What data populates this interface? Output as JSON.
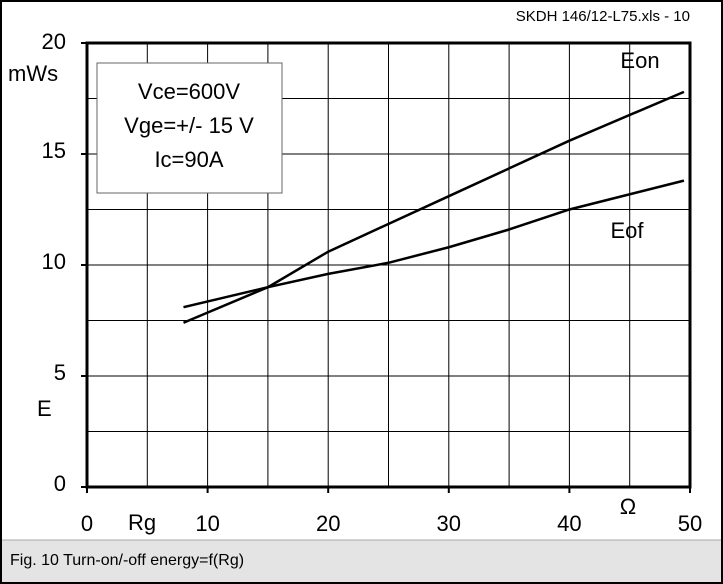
{
  "chart_data": {
    "type": "line",
    "file_label": "SKDH 146/12-L75.xls - 10",
    "caption": "Fig. 10 Turn-on/-off energy=f(Rg)",
    "y_unit": "mWs",
    "y_label": "E",
    "x_label": "Rg",
    "x_unit": "Ω",
    "conditions": [
      "Vce=600V",
      "Vge=+/- 15 V",
      "Ic=90A"
    ],
    "xlim": [
      0,
      50
    ],
    "ylim": [
      0,
      20
    ],
    "xticks": [
      0,
      10,
      20,
      30,
      40,
      50
    ],
    "yticks": [
      0,
      5,
      10,
      15,
      20
    ],
    "xgrid": [
      0,
      5,
      10,
      15,
      20,
      25,
      30,
      35,
      40,
      45,
      50
    ],
    "ygrid": [
      0,
      2.5,
      5,
      7.5,
      10,
      12.5,
      15,
      17.5,
      20
    ],
    "grid": true,
    "series": [
      {
        "name": "Eon",
        "color": "#000000",
        "x": [
          8,
          15,
          20,
          30,
          40,
          49.5
        ],
        "values": [
          7.4,
          9.0,
          10.6,
          13.1,
          15.6,
          17.8
        ]
      },
      {
        "name": "Eof",
        "color": "#000000",
        "x": [
          8,
          15,
          20,
          25,
          30,
          35,
          40,
          49.5
        ],
        "values": [
          8.1,
          9.0,
          9.6,
          10.1,
          10.8,
          11.6,
          12.5,
          13.8
        ]
      }
    ]
  }
}
